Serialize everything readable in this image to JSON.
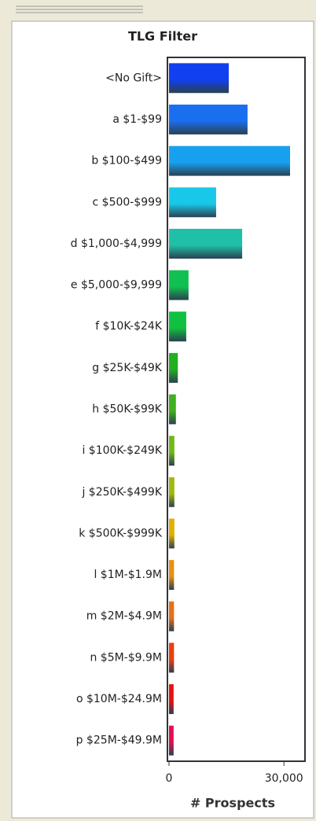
{
  "chart_data": {
    "type": "bar",
    "orientation": "horizontal",
    "title": "TLG Filter",
    "x_label": "# Prospects",
    "categories": [
      "<No Gift>",
      "a $1-$99",
      "b $100-$499",
      "c $500-$999",
      "d $1,000-$4,999",
      "e $5,000-$9,999",
      "f $10K-$24K",
      "g $25K-$49K",
      "h $50K-$99K",
      "i $100K-$249K",
      "j $250K-$499K",
      "k $500K-$999K",
      "l $1M-$1.9M",
      "m $2M-$4.9M",
      "n $5M-$9.9M",
      "o $10M-$24.9M",
      "p $25M-$49.9M"
    ],
    "values": [
      15600,
      20500,
      31600,
      12300,
      19100,
      5100,
      4500,
      2300,
      1800,
      1400,
      1400,
      1400,
      1300,
      1300,
      1300,
      1200,
      1200
    ],
    "colors": [
      "#1040f0",
      "#1a6ef0",
      "#18a0f0",
      "#18c8e8",
      "#20c0a8",
      "#10c050",
      "#10c040",
      "#20b020",
      "#40b020",
      "#70b818",
      "#a0b810",
      "#e0b000",
      "#e89010",
      "#e87018",
      "#e84010",
      "#e81010",
      "#e01050"
    ],
    "xlim": [
      0,
      35500
    ],
    "xticks": [
      0,
      {
        "value": 30000,
        "label": "30,000"
      }
    ],
    "grid": false
  }
}
